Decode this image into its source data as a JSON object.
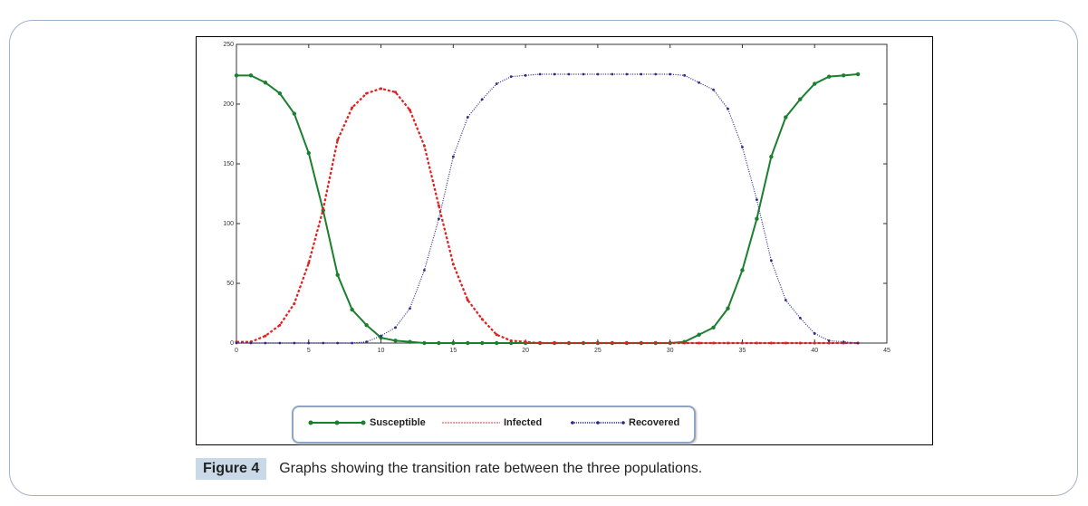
{
  "chart_data": {
    "type": "line",
    "title": "",
    "xlabel": "",
    "ylabel": "",
    "xlim": [
      0,
      45
    ],
    "ylim": [
      0,
      250
    ],
    "xticks": [
      "0",
      "5",
      "10",
      "15",
      "20",
      "25",
      "30",
      "35",
      "40",
      "45"
    ],
    "yticks": [
      "0",
      "50",
      "100",
      "150",
      "200",
      "250"
    ],
    "legend_position": "bottom",
    "x": [
      0,
      1,
      2,
      3,
      4,
      5,
      6,
      7,
      8,
      9,
      10,
      11,
      12,
      13,
      14,
      15,
      16,
      17,
      18,
      19,
      20,
      21,
      22,
      23,
      24,
      25,
      26,
      27,
      28,
      29,
      30,
      31,
      32,
      33,
      34,
      35,
      36,
      37,
      38,
      39,
      40,
      41,
      42,
      43
    ],
    "series": [
      {
        "name": "Susceptible",
        "color": "#1a7f2e",
        "values": [
          224,
          224,
          218,
          209,
          192,
          159,
          111,
          57,
          28,
          15,
          4.5,
          2,
          1,
          0,
          0,
          0,
          0,
          0,
          0,
          0,
          0,
          0,
          0,
          0,
          0,
          0,
          0,
          0,
          0,
          0,
          0,
          1,
          7,
          13,
          29,
          61,
          104,
          156,
          189,
          204,
          217,
          223,
          224,
          225
        ]
      },
      {
        "name": "Infected",
        "color": "#e02020",
        "values": [
          1,
          1,
          6,
          15,
          33,
          67,
          112,
          170,
          197,
          209,
          213,
          210,
          195,
          165,
          115,
          66,
          36,
          20,
          7,
          2,
          1,
          0,
          0,
          0,
          0,
          0,
          0,
          0,
          0,
          0,
          0,
          0,
          0,
          0,
          0,
          0,
          0,
          0,
          0,
          0,
          0,
          0,
          0,
          0
        ]
      },
      {
        "name": "Recovered",
        "color": "#2a2a8a",
        "values": [
          0,
          0,
          0,
          0,
          0,
          0,
          0,
          0,
          0,
          1,
          6,
          13,
          29,
          61,
          104,
          156,
          189,
          204,
          217,
          223,
          224,
          225,
          225,
          225,
          225,
          225,
          225,
          225,
          225,
          225,
          225,
          224,
          218,
          212,
          196,
          164,
          120,
          69,
          36,
          21,
          8,
          2,
          1,
          0
        ]
      }
    ]
  },
  "caption": {
    "label": "Figure 4",
    "text": "Graphs showing the transition rate between the three populations."
  }
}
